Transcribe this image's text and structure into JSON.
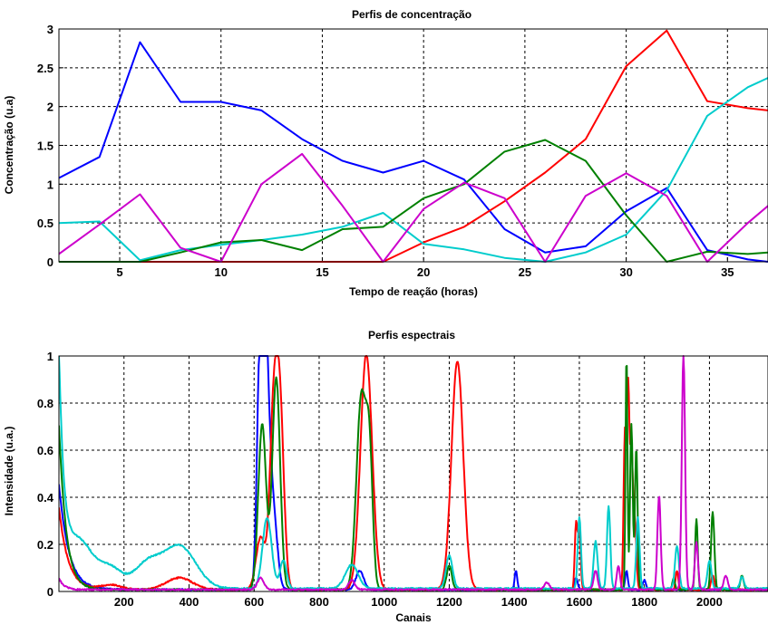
{
  "chart_data": [
    {
      "type": "line",
      "title": "Perfis de concentração",
      "xlabel": "Tempo de reação (horas)",
      "ylabel": "Concentração (u.a)",
      "xlim": [
        2,
        37
      ],
      "ylim": [
        0,
        3
      ],
      "xticks": [
        5,
        10,
        15,
        20,
        25,
        30,
        35
      ],
      "yticks": [
        0,
        0.5,
        1,
        1.5,
        2,
        2.5,
        3
      ],
      "grid": true,
      "x": [
        2,
        4,
        6,
        8,
        10,
        12,
        14,
        16,
        18,
        20,
        22,
        24,
        26,
        28,
        30,
        32,
        34,
        36,
        37
      ],
      "series": [
        {
          "color": "#0000ff",
          "values": [
            1.08,
            1.35,
            2.83,
            2.06,
            2.06,
            1.95,
            1.58,
            1.3,
            1.15,
            1.3,
            1.06,
            0.42,
            0.12,
            0.2,
            0.65,
            0.95,
            0.15,
            0.03,
            0.0
          ]
        },
        {
          "color": "#ff0000",
          "values": [
            0,
            0,
            0,
            0,
            0,
            0,
            0,
            0,
            0,
            0.25,
            0.45,
            0.78,
            1.15,
            1.58,
            2.52,
            2.98,
            2.07,
            1.98,
            1.95
          ]
        },
        {
          "color": "#00cccc",
          "values": [
            0.5,
            0.52,
            0.02,
            0.15,
            0.22,
            0.28,
            0.35,
            0.45,
            0.63,
            0.23,
            0.16,
            0.05,
            0.0,
            0.12,
            0.35,
            0.92,
            1.88,
            2.25,
            2.37
          ]
        },
        {
          "color": "#008000",
          "values": [
            0.0,
            0.0,
            0.0,
            0.12,
            0.25,
            0.28,
            0.15,
            0.42,
            0.45,
            0.82,
            1.0,
            1.42,
            1.57,
            1.3,
            0.6,
            0.0,
            0.13,
            0.1,
            0.12
          ]
        },
        {
          "color": "#cc00cc",
          "values": [
            0.1,
            0.48,
            0.87,
            0.18,
            0.0,
            1.0,
            1.39,
            0.72,
            0.0,
            0.68,
            1.02,
            0.82,
            0.0,
            0.85,
            1.14,
            0.85,
            0.0,
            0.5,
            0.72
          ]
        }
      ]
    },
    {
      "type": "line",
      "title": "Perfis espectrais",
      "xlabel": "Canais",
      "ylabel": "Intensidade (u.a.)",
      "xlim": [
        0,
        2180
      ],
      "ylim": [
        0,
        1
      ],
      "xticks": [
        200,
        400,
        600,
        800,
        1000,
        1200,
        1400,
        1600,
        1800,
        2000
      ],
      "yticks": [
        0,
        0.2,
        0.4,
        0.6,
        0.8,
        1
      ],
      "grid": true,
      "series": [
        {
          "color": "#0000ff",
          "baseline": 0.005,
          "decay": [
            0.45,
            30
          ],
          "peaks": [
            [
              615,
              0.72,
              8
            ],
            [
              628,
              1.0,
              8
            ],
            [
              640,
              0.7,
              10
            ],
            [
              660,
              0.3,
              12
            ],
            [
              925,
              0.08,
              12
            ],
            [
              1405,
              0.08,
              4
            ],
            [
              1590,
              0.05,
              5
            ],
            [
              1745,
              0.08,
              4
            ],
            [
              1800,
              0.04,
              5
            ]
          ]
        },
        {
          "color": "#ff0000",
          "baseline": 0.005,
          "decay": [
            0.35,
            28
          ],
          "peaks": [
            [
              160,
              0.02,
              30
            ],
            [
              370,
              0.05,
              40
            ],
            [
              620,
              0.22,
              14
            ],
            [
              660,
              0.72,
              12
            ],
            [
              680,
              0.72,
              12
            ],
            [
              945,
              1.0,
              18
            ],
            [
              1225,
              0.97,
              18
            ],
            [
              1590,
              0.28,
              4
            ],
            [
              1600,
              0.25,
              4
            ],
            [
              1740,
              0.65,
              4
            ],
            [
              1750,
              0.85,
              4
            ],
            [
              1760,
              0.55,
              4
            ],
            [
              1770,
              0.3,
              5
            ],
            [
              1900,
              0.08,
              4
            ],
            [
              2010,
              0.06,
              5
            ]
          ]
        },
        {
          "color": "#008000",
          "baseline": 0.005,
          "decay": [
            0.7,
            22
          ],
          "peaks": [
            [
              625,
              0.7,
              12
            ],
            [
              668,
              0.9,
              12
            ],
            [
              930,
              0.82,
              15
            ],
            [
              955,
              0.5,
              10
            ],
            [
              1200,
              0.1,
              8
            ],
            [
              1745,
              1.0,
              3
            ],
            [
              1760,
              0.7,
              4
            ],
            [
              1775,
              0.6,
              4
            ],
            [
              1890,
              0.05,
              4
            ],
            [
              1960,
              0.3,
              4
            ],
            [
              2010,
              0.33,
              5
            ],
            [
              2100,
              0.06,
              5
            ]
          ]
        },
        {
          "color": "#00cccc",
          "baseline": 0.01,
          "decay": [
            0.95,
            15
          ],
          "peaks": [
            [
              60,
              0.2,
              45
            ],
            [
              160,
              0.08,
              35
            ],
            [
              270,
              0.1,
              40
            ],
            [
              370,
              0.18,
              50
            ],
            [
              640,
              0.3,
              14
            ],
            [
              690,
              0.12,
              10
            ],
            [
              900,
              0.1,
              20
            ],
            [
              1200,
              0.14,
              10
            ],
            [
              1600,
              0.3,
              5
            ],
            [
              1650,
              0.2,
              6
            ],
            [
              1690,
              0.35,
              5
            ],
            [
              1780,
              0.3,
              5
            ],
            [
              1900,
              0.18,
              6
            ],
            [
              2000,
              0.12,
              6
            ],
            [
              2100,
              0.05,
              6
            ]
          ]
        },
        {
          "color": "#cc00cc",
          "baseline": 0.005,
          "decay": [
            0.05,
            15
          ],
          "peaks": [
            [
              620,
              0.05,
              10
            ],
            [
              900,
              0.04,
              10
            ],
            [
              1500,
              0.03,
              8
            ],
            [
              1650,
              0.08,
              6
            ],
            [
              1720,
              0.1,
              5
            ],
            [
              1845,
              0.4,
              5
            ],
            [
              1920,
              1.0,
              5
            ],
            [
              1960,
              0.2,
              5
            ],
            [
              2050,
              0.06,
              6
            ]
          ]
        }
      ]
    }
  ]
}
